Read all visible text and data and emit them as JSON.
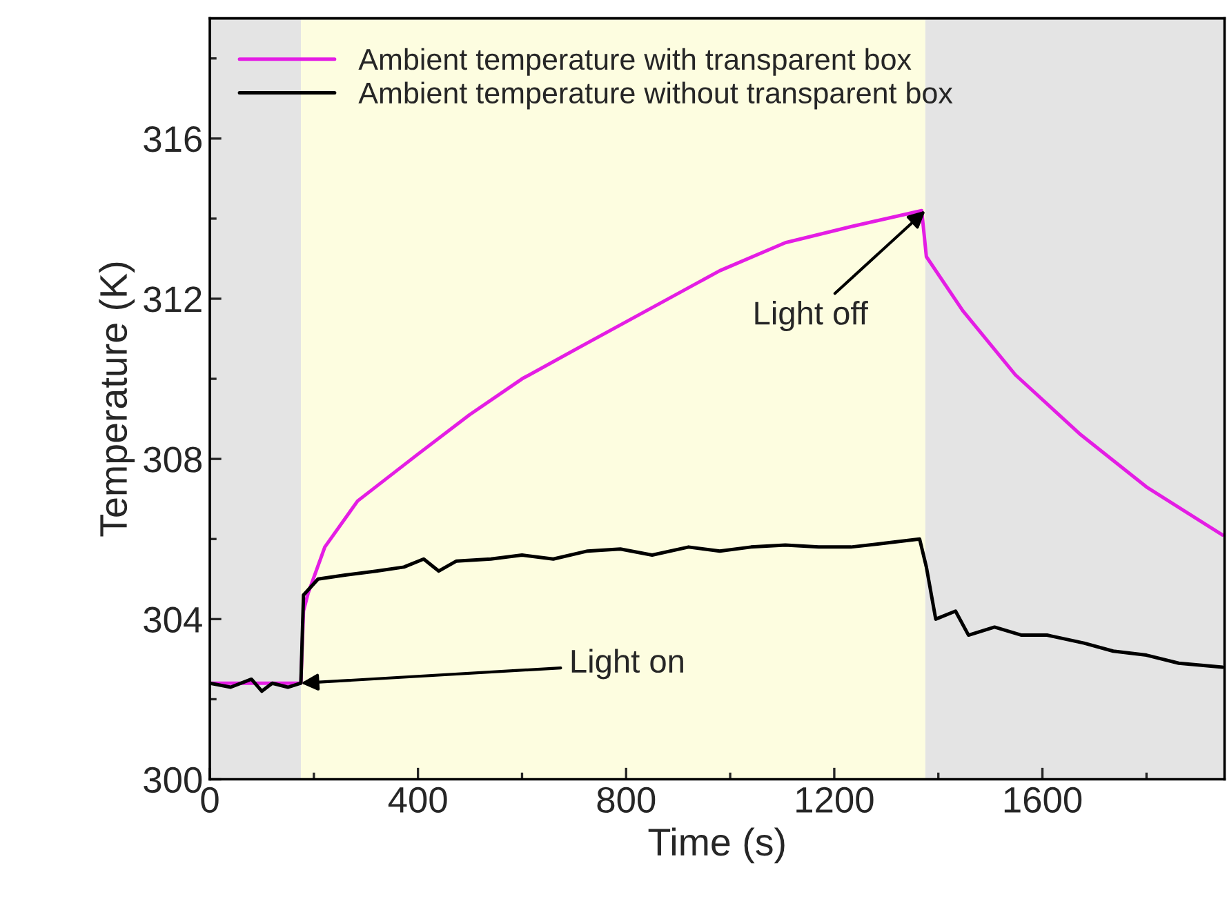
{
  "chart_data": {
    "type": "line",
    "xlabel": "Time (s)",
    "ylabel": "Temperature (K)",
    "xlim": [
      0,
      1950
    ],
    "ylim": [
      300,
      319
    ],
    "xticks": [
      0,
      400,
      800,
      1200,
      1600
    ],
    "yticks": [
      300,
      304,
      308,
      312,
      316
    ],
    "grid": false,
    "legend": "top left",
    "marker": "none",
    "line_style": "solid",
    "series": [
      {
        "name": "Ambient temperature with transparent box",
        "color": "#e41de4",
        "x": [
          0,
          60,
          120,
          175,
          180,
          189,
          221,
          284,
          398,
          499,
          600,
          726,
          853,
          980,
          1106,
          1232,
          1368,
          1377,
          1447,
          1548,
          1674,
          1800,
          1946
        ],
        "values": [
          302.4,
          302.4,
          302.4,
          302.4,
          304.2,
          304.65,
          305.8,
          306.95,
          308.1,
          309.1,
          310.0,
          310.9,
          311.8,
          312.7,
          313.4,
          313.8,
          314.2,
          313.05,
          311.7,
          310.1,
          308.6,
          307.3,
          306.1
        ]
      },
      {
        "name": "Ambient temperature without transparent box",
        "color": "#000000",
        "x": [
          0,
          40,
          80,
          100,
          120,
          150,
          175,
          180,
          208,
          260,
          320,
          373,
          411,
          440,
          474,
          540,
          600,
          660,
          726,
          789,
          850,
          920,
          980,
          1040,
          1106,
          1170,
          1232,
          1300,
          1364,
          1377,
          1395,
          1433,
          1458,
          1508,
          1560,
          1609,
          1680,
          1736,
          1800,
          1862,
          1946
        ],
        "values": [
          302.4,
          302.3,
          302.5,
          302.2,
          302.4,
          302.3,
          302.4,
          304.6,
          305.0,
          305.1,
          305.2,
          305.3,
          305.5,
          305.2,
          305.45,
          305.5,
          305.6,
          305.5,
          305.7,
          305.75,
          305.6,
          305.8,
          305.7,
          305.8,
          305.85,
          305.8,
          305.8,
          305.9,
          306.0,
          305.3,
          304.0,
          304.2,
          303.6,
          303.8,
          303.6,
          303.6,
          303.4,
          303.2,
          303.1,
          302.9,
          302.8
        ]
      }
    ],
    "bands": [
      {
        "axis": "x",
        "from": 0,
        "to": 175,
        "color": "#e4e4e4"
      },
      {
        "axis": "x",
        "from": 175,
        "to": 1375,
        "color": "#fdfde0"
      },
      {
        "axis": "x",
        "from": 1375,
        "to": 1950,
        "color": "#e4e4e4"
      }
    ],
    "annotations": [
      {
        "text": "Light on",
        "x": 175,
        "y": 302.4
      },
      {
        "text": "Light off",
        "x": 1375,
        "y": 314.2
      }
    ]
  }
}
